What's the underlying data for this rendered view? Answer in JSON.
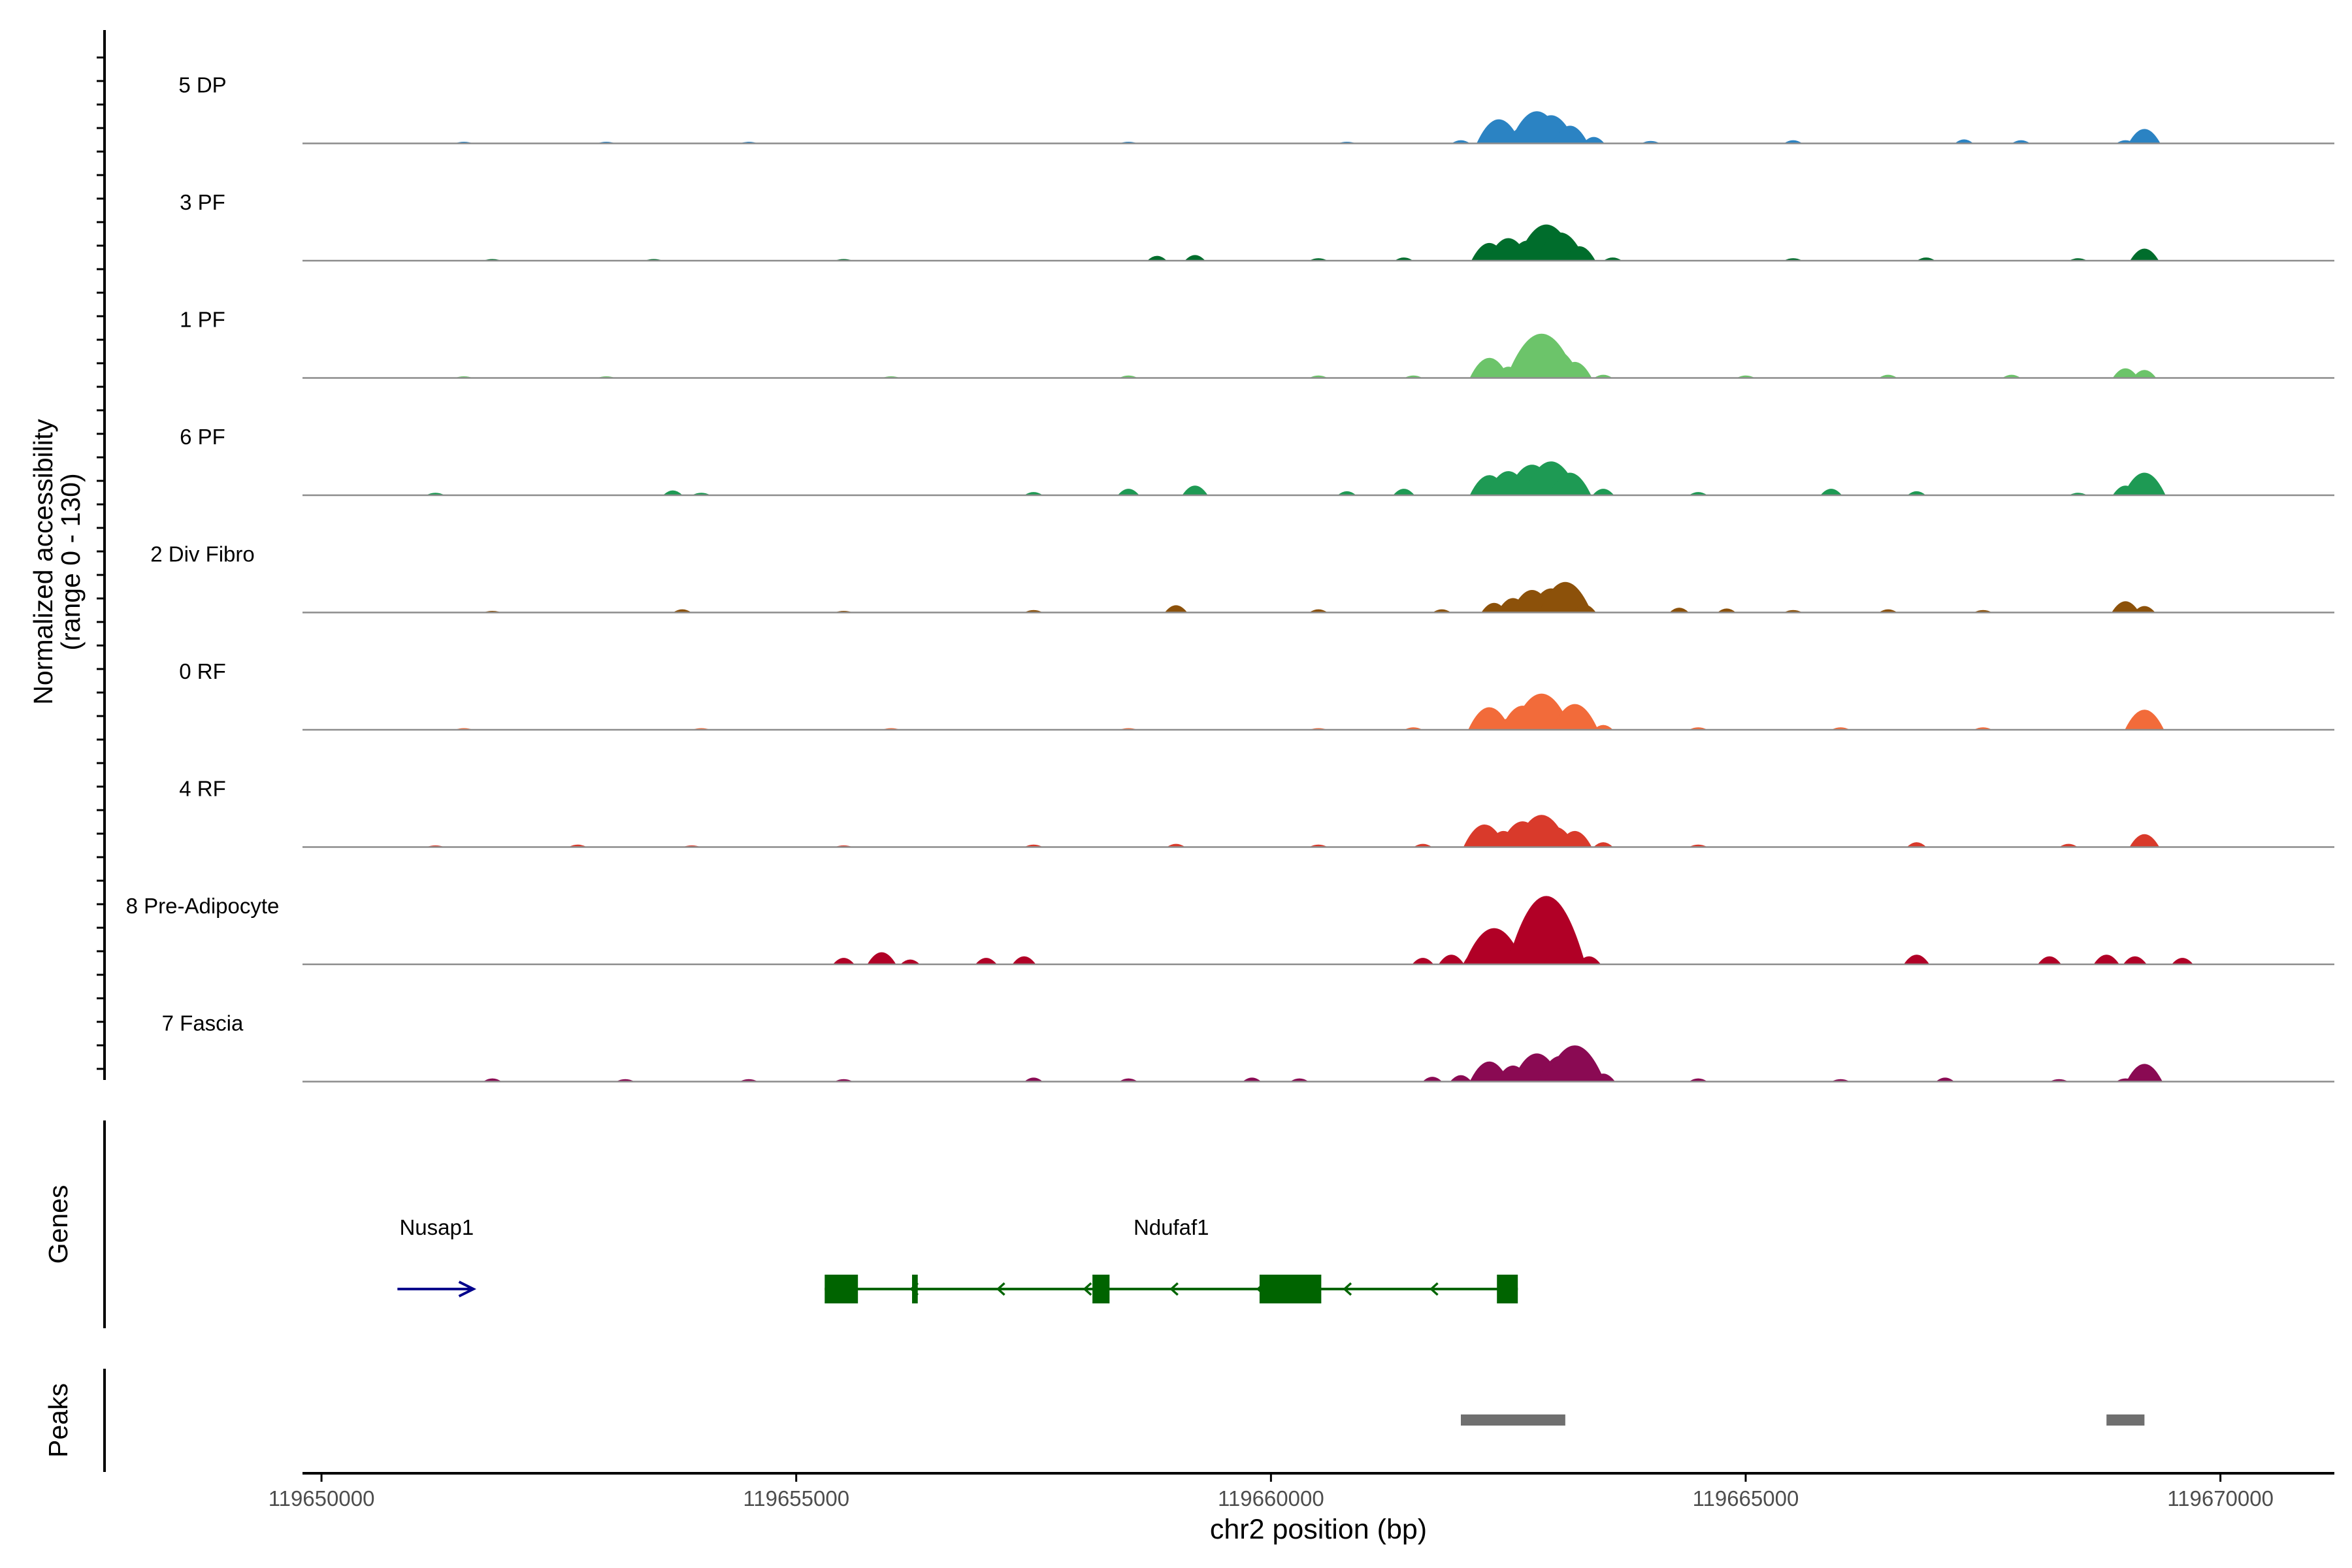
{
  "chart_data": {
    "type": "area",
    "title": "",
    "xlabel": "chr2 position (bp)",
    "ylabel_line1": "Normalized accessibility",
    "ylabel_line2": "(range 0 - 130)",
    "xlim": [
      119649800,
      119671200
    ],
    "ylim": [
      0,
      130
    ],
    "xticks": [
      119650000,
      119655000,
      119660000,
      119665000,
      119670000
    ],
    "xtick_labels": [
      "119650000",
      "119655000",
      "119660000",
      "119665000",
      "119670000"
    ],
    "series": [
      {
        "name": "5 DP",
        "color": "#2b83c3",
        "values": [
          [
            119651500,
            2
          ],
          [
            119653000,
            2
          ],
          [
            119654500,
            2
          ],
          [
            119658500,
            2
          ],
          [
            119660800,
            2
          ],
          [
            119662000,
            4
          ],
          [
            119662400,
            30
          ],
          [
            119662650,
            20
          ],
          [
            119662800,
            40
          ],
          [
            119662950,
            35
          ],
          [
            119663150,
            22
          ],
          [
            119663400,
            8
          ],
          [
            119664000,
            3
          ],
          [
            119665500,
            4
          ],
          [
            119667300,
            5
          ],
          [
            119667900,
            4
          ],
          [
            119669000,
            4
          ],
          [
            119669200,
            18
          ]
        ]
      },
      {
        "name": "3 PF",
        "color": "#006d2c",
        "values": [
          [
            119651800,
            2
          ],
          [
            119653500,
            2
          ],
          [
            119655500,
            2
          ],
          [
            119658800,
            6
          ],
          [
            119659200,
            7
          ],
          [
            119660500,
            3
          ],
          [
            119661400,
            4
          ],
          [
            119662300,
            22
          ],
          [
            119662500,
            28
          ],
          [
            119662700,
            25
          ],
          [
            119662900,
            45
          ],
          [
            119663050,
            35
          ],
          [
            119663250,
            18
          ],
          [
            119663600,
            4
          ],
          [
            119665500,
            3
          ],
          [
            119666900,
            4
          ],
          [
            119668500,
            3
          ],
          [
            119669200,
            15
          ]
        ]
      },
      {
        "name": "1 PF",
        "color": "#6cc46a",
        "values": [
          [
            119651500,
            2
          ],
          [
            119653000,
            2
          ],
          [
            119656000,
            2
          ],
          [
            119658500,
            3
          ],
          [
            119660500,
            3
          ],
          [
            119661500,
            3
          ],
          [
            119662300,
            25
          ],
          [
            119662500,
            14
          ],
          [
            119662700,
            22
          ],
          [
            119662850,
            55
          ],
          [
            119663000,
            35
          ],
          [
            119663200,
            20
          ],
          [
            119663500,
            4
          ],
          [
            119665000,
            3
          ],
          [
            119666500,
            4
          ],
          [
            119667800,
            4
          ],
          [
            119669000,
            12
          ],
          [
            119669200,
            10
          ]
        ]
      },
      {
        "name": "6 PF",
        "color": "#1e9a54",
        "values": [
          [
            119651200,
            3
          ],
          [
            119653700,
            6
          ],
          [
            119654000,
            3
          ],
          [
            119657500,
            4
          ],
          [
            119658500,
            8
          ],
          [
            119659200,
            12
          ],
          [
            119660800,
            5
          ],
          [
            119661400,
            8
          ],
          [
            119662300,
            25
          ],
          [
            119662500,
            30
          ],
          [
            119662750,
            38
          ],
          [
            119662950,
            42
          ],
          [
            119663150,
            28
          ],
          [
            119663500,
            8
          ],
          [
            119664500,
            4
          ],
          [
            119665900,
            8
          ],
          [
            119666800,
            5
          ],
          [
            119668500,
            3
          ],
          [
            119669000,
            12
          ],
          [
            119669200,
            28
          ]
        ]
      },
      {
        "name": "2 Div Fibro",
        "color": "#8c510a",
        "values": [
          [
            119651800,
            2
          ],
          [
            119653800,
            4
          ],
          [
            119655500,
            2
          ],
          [
            119657500,
            3
          ],
          [
            119659000,
            9
          ],
          [
            119660500,
            4
          ],
          [
            119661800,
            4
          ],
          [
            119662350,
            12
          ],
          [
            119662550,
            18
          ],
          [
            119662750,
            28
          ],
          [
            119662950,
            30
          ],
          [
            119663100,
            38
          ],
          [
            119663300,
            10
          ],
          [
            119664300,
            6
          ],
          [
            119664800,
            5
          ],
          [
            119665500,
            3
          ],
          [
            119666500,
            4
          ],
          [
            119667500,
            3
          ],
          [
            119669000,
            14
          ],
          [
            119669200,
            8
          ]
        ]
      },
      {
        "name": "0 RF",
        "color": "#f26b3a",
        "values": [
          [
            119651500,
            2
          ],
          [
            119654000,
            2
          ],
          [
            119656000,
            2
          ],
          [
            119658500,
            2
          ],
          [
            119660500,
            2
          ],
          [
            119661500,
            3
          ],
          [
            119662300,
            28
          ],
          [
            119662500,
            14
          ],
          [
            119662650,
            30
          ],
          [
            119662850,
            45
          ],
          [
            119663000,
            20
          ],
          [
            119663200,
            32
          ],
          [
            119663500,
            6
          ],
          [
            119664500,
            3
          ],
          [
            119666000,
            3
          ],
          [
            119667500,
            3
          ],
          [
            119669200,
            25
          ]
        ]
      },
      {
        "name": "4 RF",
        "color": "#d93a2b",
        "values": [
          [
            119651200,
            2
          ],
          [
            119652700,
            3
          ],
          [
            119653900,
            2
          ],
          [
            119655500,
            2
          ],
          [
            119657500,
            3
          ],
          [
            119659000,
            4
          ],
          [
            119660500,
            3
          ],
          [
            119661600,
            4
          ],
          [
            119662250,
            28
          ],
          [
            119662450,
            20
          ],
          [
            119662650,
            32
          ],
          [
            119662850,
            40
          ],
          [
            119663000,
            25
          ],
          [
            119663200,
            20
          ],
          [
            119663500,
            6
          ],
          [
            119664500,
            3
          ],
          [
            119666800,
            6
          ],
          [
            119668400,
            4
          ],
          [
            119669200,
            16
          ]
        ]
      },
      {
        "name": "8 Pre-Adipocyte",
        "color": "#b10026",
        "values": [
          [
            119655500,
            8
          ],
          [
            119655900,
            15
          ],
          [
            119656200,
            6
          ],
          [
            119657000,
            8
          ],
          [
            119657400,
            10
          ],
          [
            119661600,
            8
          ],
          [
            119661900,
            12
          ],
          [
            119662200,
            20
          ],
          [
            119662350,
            45
          ],
          [
            119662550,
            18
          ],
          [
            119662750,
            42
          ],
          [
            119662900,
            85
          ],
          [
            119663050,
            20
          ],
          [
            119663350,
            10
          ],
          [
            119666800,
            12
          ],
          [
            119668200,
            10
          ],
          [
            119668800,
            12
          ],
          [
            119669100,
            10
          ],
          [
            119669600,
            8
          ]
        ]
      },
      {
        "name": "7 Fascia",
        "color": "#8a0a53",
        "values": [
          [
            119651800,
            4
          ],
          [
            119653200,
            3
          ],
          [
            119654500,
            3
          ],
          [
            119655500,
            3
          ],
          [
            119657500,
            5
          ],
          [
            119658500,
            4
          ],
          [
            119659800,
            5
          ],
          [
            119660300,
            4
          ],
          [
            119661700,
            6
          ],
          [
            119662000,
            8
          ],
          [
            119662300,
            25
          ],
          [
            119662550,
            20
          ],
          [
            119662800,
            35
          ],
          [
            119663050,
            32
          ],
          [
            119663200,
            45
          ],
          [
            119663500,
            10
          ],
          [
            119664500,
            4
          ],
          [
            119666000,
            3
          ],
          [
            119667100,
            5
          ],
          [
            119668300,
            3
          ],
          [
            119669000,
            4
          ],
          [
            119669200,
            22
          ]
        ]
      }
    ],
    "genes": [
      {
        "name": "Nusap1",
        "strand": "+",
        "color": "#00008b",
        "start": 119650800,
        "end": 119651600,
        "exons": []
      },
      {
        "name": "Ndufaf1",
        "strand": "-",
        "color": "#006400",
        "start": 119655300,
        "end": 119662600,
        "exons": [
          [
            119655300,
            119655650
          ],
          [
            119656220,
            119656280
          ],
          [
            119658120,
            119658300
          ],
          [
            119659880,
            119660530
          ],
          [
            119662380,
            119662600
          ]
        ]
      }
    ],
    "peaks": [
      [
        119662000,
        119663100
      ],
      [
        119668800,
        119669200
      ]
    ],
    "panel_labels": {
      "genes": "Genes",
      "peaks": "Peaks"
    }
  }
}
